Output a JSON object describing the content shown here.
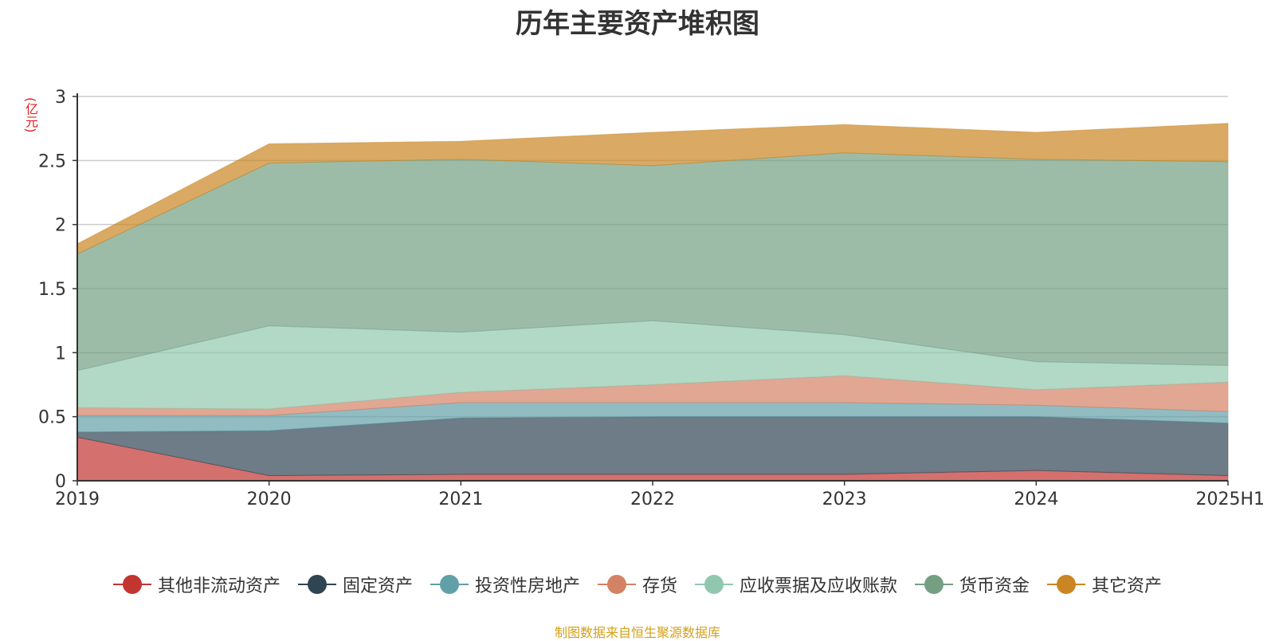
{
  "chart_data": {
    "type": "area",
    "title": "历年主要资产堆积图",
    "ylabel": "(亿元)",
    "categories": [
      "2019",
      "2020",
      "2021",
      "2022",
      "2023",
      "2024",
      "2025H1"
    ],
    "ylim": [
      0,
      3
    ],
    "yticks": [
      "0",
      "0.5",
      "1",
      "1.5",
      "2",
      "2.5",
      "3"
    ],
    "grid": true,
    "legend_position": "bottom",
    "stacked": true,
    "series": [
      {
        "name": "其他非流动资产",
        "color": "#c23531",
        "values": [
          0.34,
          0.04,
          0.05,
          0.05,
          0.05,
          0.08,
          0.04
        ]
      },
      {
        "name": "固定资产",
        "color": "#2f4554",
        "values": [
          0.04,
          0.35,
          0.44,
          0.45,
          0.45,
          0.42,
          0.41
        ]
      },
      {
        "name": "投资性房地产",
        "color": "#61a0a8",
        "values": [
          0.13,
          0.12,
          0.12,
          0.11,
          0.11,
          0.09,
          0.09
        ]
      },
      {
        "name": "存货",
        "color": "#d48265",
        "values": [
          0.06,
          0.05,
          0.08,
          0.14,
          0.21,
          0.12,
          0.23
        ]
      },
      {
        "name": "应收票据及应收账款",
        "color": "#91c7ae",
        "values": [
          0.29,
          0.65,
          0.47,
          0.5,
          0.32,
          0.22,
          0.13
        ]
      },
      {
        "name": "货币资金",
        "color": "#749f83",
        "values": [
          0.91,
          1.27,
          1.35,
          1.21,
          1.42,
          1.58,
          1.59
        ]
      },
      {
        "name": "其它资产",
        "color": "#ca8622",
        "values": [
          0.08,
          0.15,
          0.14,
          0.26,
          0.22,
          0.21,
          0.3
        ]
      }
    ]
  },
  "footer": {
    "source": "制图数据来自恒生聚源数据库"
  }
}
